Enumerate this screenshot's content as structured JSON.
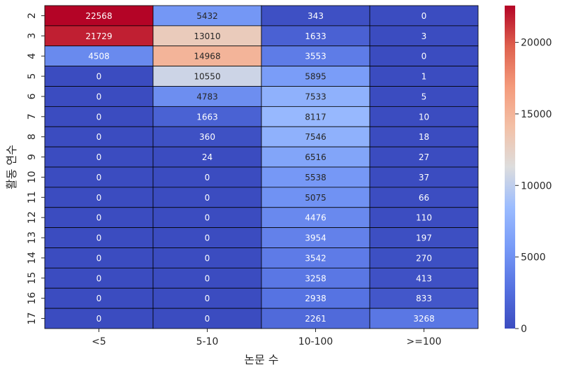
{
  "chart_data": {
    "type": "heatmap",
    "xlabel": "논문 수",
    "ylabel": "활동 연수",
    "x_categories": [
      "<5",
      "5-10",
      "10-100",
      ">=100"
    ],
    "y_categories": [
      "2",
      "3",
      "4",
      "5",
      "6",
      "7",
      "8",
      "9",
      "10",
      "11",
      "12",
      "13",
      "14",
      "15",
      "16",
      "17"
    ],
    "values": [
      [
        22568,
        5432,
        343,
        0
      ],
      [
        21729,
        13010,
        1633,
        3
      ],
      [
        4508,
        14968,
        3553,
        0
      ],
      [
        0,
        10550,
        5895,
        1
      ],
      [
        0,
        4783,
        7533,
        5
      ],
      [
        0,
        1663,
        8117,
        10
      ],
      [
        0,
        360,
        7546,
        18
      ],
      [
        0,
        24,
        6516,
        27
      ],
      [
        0,
        0,
        5538,
        37
      ],
      [
        0,
        0,
        5075,
        66
      ],
      [
        0,
        0,
        4476,
        110
      ],
      [
        0,
        0,
        3954,
        197
      ],
      [
        0,
        0,
        3542,
        270
      ],
      [
        0,
        0,
        3258,
        413
      ],
      [
        0,
        0,
        2938,
        833
      ],
      [
        0,
        0,
        2261,
        3268
      ]
    ],
    "colormap": "coolwarm",
    "vmin": 0,
    "vmax": 22568,
    "colorbar_ticks": [
      0,
      5000,
      10000,
      15000,
      20000
    ],
    "cell_border_color": "#000000"
  }
}
